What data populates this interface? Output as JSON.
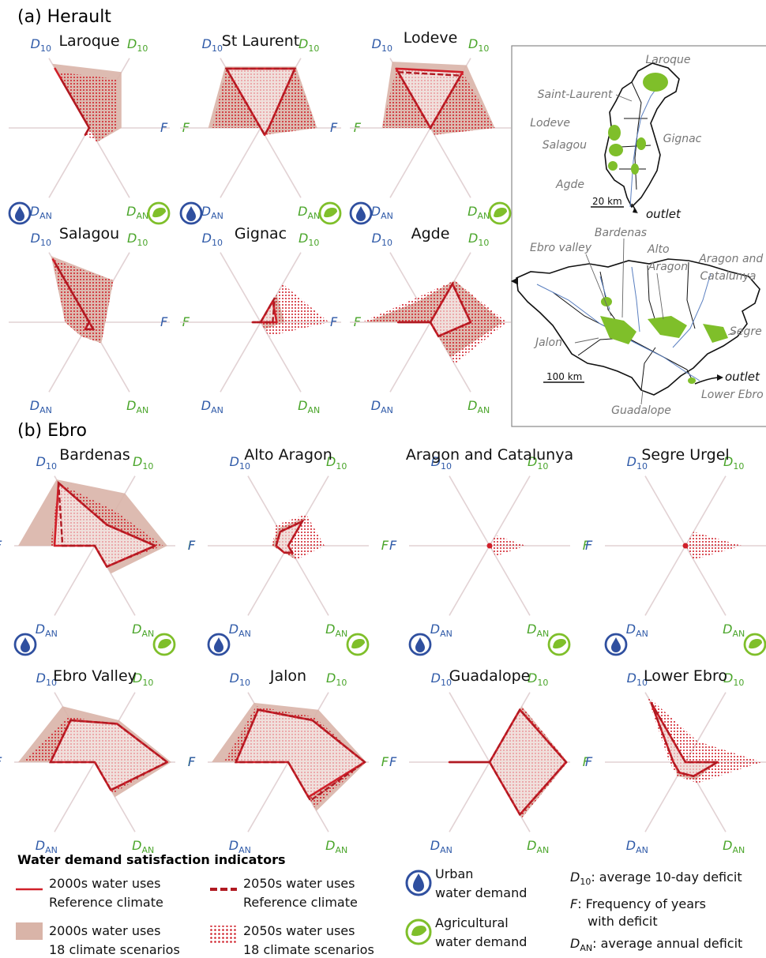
{
  "sections": {
    "a": "(a) Herault",
    "b": "(b) Ebro"
  },
  "axis_labels": {
    "d10_blue": "D",
    "d10_green": "D",
    "d10_sub": "10",
    "f": "F",
    "dan": "D",
    "dan_sub": "AN"
  },
  "colors": {
    "urban": "#2f4f9f",
    "agri": "#7fbf2a",
    "ref": "#d0202a",
    "band": "#d9b4a8",
    "dots": "#d0202a"
  },
  "icons": {
    "urban": "water-drop-icon",
    "agri": "leaf-icon"
  },
  "map": {
    "labels": [
      "Laroque",
      "Saint-Laurent",
      "Lodeve",
      "Salagou",
      "Gignac",
      "Agde",
      "outlet",
      "20 km",
      "Bardenas",
      "Ebro valley",
      "Alto Aragon",
      "Aragon and Catalunya",
      "Segre",
      "Jalon",
      "100 km",
      "outlet",
      "Lower Ebro",
      "Guadalope"
    ]
  },
  "legend": {
    "title": "Water demand satisfaction indicators",
    "items": [
      {
        "line1": "2000s water uses",
        "line2": "Reference climate"
      },
      {
        "line1": "2050s water uses",
        "line2": "Reference climate"
      },
      {
        "line1": "2000s water uses",
        "line2": "18 climate scenarios"
      },
      {
        "line1": "2050s water uses",
        "line2": "18 climate scenarios"
      }
    ],
    "urban": {
      "line1": "Urban",
      "line2": "water demand"
    },
    "agri": {
      "line1": "Agricultural",
      "line2": "water demand"
    },
    "definitions": {
      "d10": ": average 10-day deficit",
      "f1": ": Frequency of years",
      "f2": "with deficit",
      "dan": ": average annual deficit"
    }
  },
  "chart_data": [
    {
      "type": "radar",
      "region": "Herault",
      "title": "Laroque",
      "axes": [
        "D10 urban",
        "D10 agricultural",
        "F agricultural",
        "DAN agricultural",
        "DAN urban",
        "F urban"
      ],
      "ref2000": [
        0.85,
        0,
        0,
        0,
        0.1,
        0
      ],
      "ref2050": [
        0.7,
        0,
        0,
        0,
        0.1,
        0
      ],
      "band2000": [
        0.92,
        0.8,
        0.4,
        0.2,
        0,
        0
      ],
      "band2050": [
        0.8,
        0.7,
        0.35,
        0.2,
        0.1,
        0
      ]
    },
    {
      "type": "radar",
      "region": "Herault",
      "title": "St Laurent",
      "axes": [
        "D10 urban",
        "D10 agricultural",
        "F agricultural",
        "DAN agricultural",
        "DAN urban",
        "F urban"
      ],
      "ref2000": [
        0.85,
        0.85,
        0.1,
        0.1,
        0,
        0
      ],
      "ref2050": [
        0.85,
        0.85,
        0.1,
        0.1,
        0,
        0
      ],
      "band2000": [
        0.88,
        0.88,
        0.7,
        0.1,
        0,
        0.65
      ],
      "band2050": [
        0.85,
        0.85,
        0.7,
        0.1,
        0,
        0.6
      ]
    },
    {
      "type": "radar",
      "region": "Herault",
      "title": "Lodeve",
      "axes": [
        "D10 urban",
        "D10 agricultural",
        "F agricultural",
        "DAN agricultural",
        "DAN urban",
        "F urban"
      ],
      "ref2000": [
        0.85,
        0.8,
        0,
        0,
        0,
        0
      ],
      "ref2050": [
        0.8,
        0.75,
        0,
        0,
        0,
        0
      ],
      "band2000": [
        0.95,
        0.9,
        0.8,
        0.1,
        0,
        0.6
      ],
      "band2050": [
        0.85,
        0.8,
        0.8,
        0.1,
        0,
        0.6
      ]
    },
    {
      "type": "radar",
      "region": "Herault",
      "title": "Salagou",
      "axes": [
        "D10 urban",
        "D10 agricultural",
        "F agricultural",
        "DAN agricultural",
        "DAN urban",
        "F urban"
      ],
      "ref2000": [
        0.9,
        0,
        0,
        0.1,
        0.1,
        0
      ],
      "ref2050": [
        0.85,
        0,
        0,
        0.1,
        0.1,
        0
      ],
      "band2000": [
        0.95,
        0.6,
        0.2,
        0.3,
        0.2,
        0.3
      ],
      "band2050": [
        0.9,
        0.6,
        0.2,
        0.3,
        0.2,
        0.3
      ]
    },
    {
      "type": "radar",
      "region": "Herault",
      "title": "Gignac",
      "axes": [
        "D10 urban",
        "D10 agricultural",
        "F agricultural",
        "DAN agricultural",
        "DAN urban",
        "F urban"
      ],
      "ref2000": [
        0,
        0.3,
        0.2,
        0,
        0,
        0.1
      ],
      "ref2050": [
        0,
        0.35,
        0.15,
        0,
        0,
        0.1
      ],
      "band2000": [
        0,
        0.4,
        0.3,
        0.1,
        0,
        0.1
      ],
      "band2050": [
        0,
        0.55,
        0.85,
        0.2,
        0,
        0.1
      ]
    },
    {
      "type": "radar",
      "region": "Herault",
      "title": "Agde",
      "axes": [
        "D10 urban",
        "D10 agricultural",
        "F agricultural",
        "DAN agricultural",
        "DAN urban",
        "F urban"
      ],
      "ref2000": [
        0,
        0.55,
        0.5,
        0.2,
        0,
        0.4
      ],
      "ref2050": [
        0,
        0.55,
        0.5,
        0.2,
        0,
        0.4
      ],
      "band2000": [
        0.3,
        0.6,
        0.9,
        0.5,
        0,
        0.8
      ],
      "band2050": [
        0.35,
        0.6,
        0.95,
        0.6,
        0,
        0.85
      ]
    },
    {
      "type": "radar",
      "region": "Ebro",
      "title": "Bardenas",
      "axes": [
        "D10 urban",
        "D10 agricultural",
        "F agricultural",
        "DAN agricultural",
        "DAN urban",
        "F urban"
      ],
      "ref2000": [
        0.9,
        0.3,
        0.75,
        0.3,
        0,
        0.5
      ],
      "ref2050": [
        0.9,
        0.3,
        0.75,
        0.3,
        0,
        0.4
      ],
      "band2000": [
        0.95,
        0.75,
        0.9,
        0.4,
        0,
        0.95
      ],
      "band2050": [
        0.9,
        0.5,
        0.85,
        0.3,
        0,
        0.55
      ]
    },
    {
      "type": "radar",
      "region": "Ebro",
      "title": "Alto Aragon",
      "axes": [
        "D10 urban",
        "D10 agricultural",
        "F agricultural",
        "DAN agricultural",
        "DAN urban",
        "F urban"
      ],
      "ref2000": [
        0.2,
        0.35,
        0,
        0.1,
        0.1,
        0.15
      ],
      "ref2050": [
        0.2,
        0.35,
        0,
        0.1,
        0.1,
        0.15
      ],
      "band2000": [
        0.25,
        0.4,
        0,
        0.2,
        0.1,
        0.2
      ],
      "band2050": [
        0.3,
        0.45,
        0.45,
        0.2,
        0.1,
        0.2
      ]
    },
    {
      "type": "radar",
      "region": "Ebro",
      "title": "Aragon and Catalunya",
      "axes": [
        "D10 urban",
        "D10 agricultural",
        "F agricultural",
        "DAN agricultural",
        "DAN urban",
        "F urban"
      ],
      "ref2000": [
        0,
        0,
        0,
        0,
        0,
        0
      ],
      "ref2050": [
        0,
        0,
        0,
        0,
        0,
        0
      ],
      "band2000": [
        0,
        0,
        0,
        0,
        0,
        0
      ],
      "band2050": [
        0,
        0.15,
        0.45,
        0.15,
        0,
        0
      ]
    },
    {
      "type": "radar",
      "region": "Ebro",
      "title": "Segre Urgel",
      "axes": [
        "D10 urban",
        "D10 agricultural",
        "F agricultural",
        "DAN agricultural",
        "DAN urban",
        "F urban"
      ],
      "ref2000": [
        0,
        0,
        0,
        0,
        0,
        0
      ],
      "ref2050": [
        0,
        0,
        0,
        0,
        0,
        0
      ],
      "band2000": [
        0,
        0,
        0,
        0,
        0,
        0
      ],
      "band2050": [
        0,
        0.2,
        0.7,
        0.2,
        0,
        0
      ]
    },
    {
      "type": "radar",
      "region": "Ebro",
      "title": "Ebro Valley",
      "axes": [
        "D10 urban",
        "D10 agricultural",
        "F agricultural",
        "DAN agricultural",
        "DAN urban",
        "F urban"
      ],
      "ref2000": [
        0.6,
        0.55,
        0.9,
        0.4,
        0,
        0.55
      ],
      "ref2050": [
        0.6,
        0.55,
        0.9,
        0.4,
        0,
        0.55
      ],
      "band2000": [
        0.8,
        0.6,
        0.95,
        0.5,
        0,
        0.95
      ],
      "band2050": [
        0.65,
        0.55,
        0.9,
        0.45,
        0,
        0.9
      ]
    },
    {
      "type": "radar",
      "region": "Ebro",
      "title": "Jalon",
      "axes": [
        "D10 urban",
        "D10 agricultural",
        "F agricultural",
        "DAN agricultural",
        "DAN urban",
        "F urban"
      ],
      "ref2000": [
        0.75,
        0.6,
        0.95,
        0.5,
        0,
        0.65
      ],
      "ref2050": [
        0.75,
        0.6,
        0.95,
        0.55,
        0,
        0.65
      ],
      "band2000": [
        0.85,
        0.75,
        0.97,
        0.7,
        0,
        0.95
      ],
      "band2050": [
        0.8,
        0.65,
        0.95,
        0.65,
        0,
        0.8
      ]
    },
    {
      "type": "radar",
      "region": "Ebro",
      "title": "Guadalope",
      "axes": [
        "D10 urban",
        "D10 agricultural",
        "F agricultural",
        "DAN agricultural",
        "DAN urban",
        "F urban"
      ],
      "ref2000": [
        0,
        0.75,
        0.95,
        0.75,
        0,
        0.5
      ],
      "ref2050": [
        0,
        0.75,
        0.95,
        0.75,
        0,
        0.5
      ],
      "band2000": [
        0,
        0.8,
        0.97,
        0.8,
        0,
        0.95
      ],
      "band2050": [
        0,
        0.8,
        0.97,
        0.8,
        0,
        0.9
      ]
    },
    {
      "type": "radar",
      "region": "Ebro",
      "title": "Lower Ebro",
      "axes": [
        "D10 urban",
        "D10 agricultural",
        "F agricultural",
        "DAN agricultural",
        "DAN urban",
        "F urban"
      ],
      "ref2000": [
        0.85,
        0,
        0.4,
        0.2,
        0.15,
        0.15
      ],
      "ref2050": [
        0.85,
        0,
        0.4,
        0.2,
        0.15,
        0.15
      ],
      "band2000": [
        0.9,
        0,
        0.4,
        0.25,
        0.2,
        0.15
      ],
      "band2050": [
        0.95,
        0.3,
        0.95,
        0.3,
        0.2,
        0.2
      ]
    }
  ]
}
